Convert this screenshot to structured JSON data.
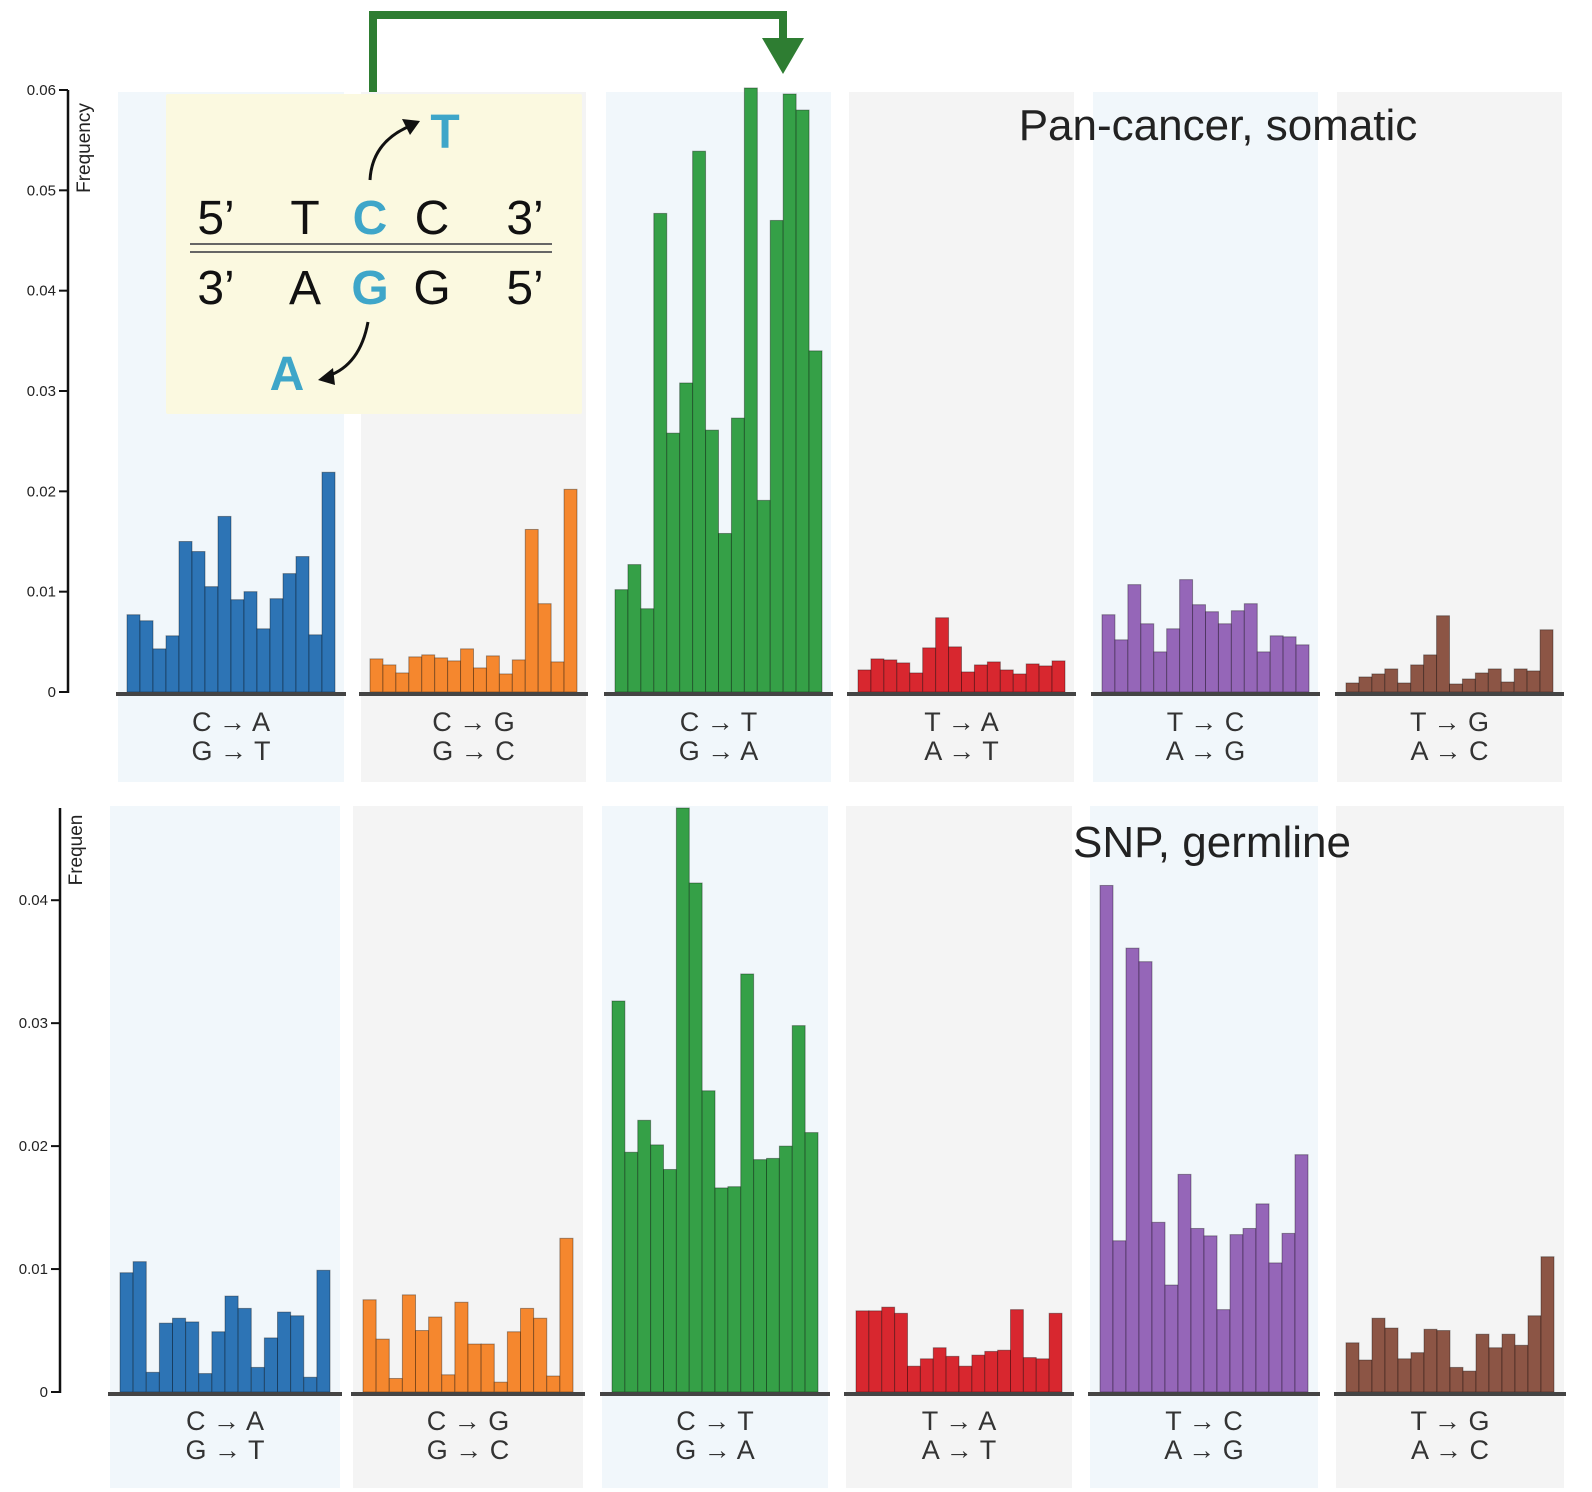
{
  "colors": {
    "C>A": "#2d74b5",
    "C>G": "#f5872e",
    "C>T": "#35a047",
    "T>A": "#d8272f",
    "T>C": "#9566b8",
    "T>G": "#8c5545",
    "panel_bg_light": "#f1f7fb",
    "panel_bg_gray": "#f4f4f4",
    "inset_bg": "#fbf9e0",
    "highlight_base": "#3ea6c9",
    "arrow": "#2e7d32"
  },
  "inset": {
    "top_strand": {
      "left": "5’",
      "b1": "T",
      "b2": "C",
      "b3": "C",
      "right": "3’"
    },
    "bottom_strand": {
      "left": "3’",
      "b1": "A",
      "b2": "G",
      "b3": "G",
      "right": "5’"
    },
    "top_mutant": "T",
    "bottom_mutant": "A"
  },
  "chart_data": [
    {
      "type": "bar",
      "title": "Pan-cancer, somatic",
      "ylabel": "Frequency",
      "ylim": [
        0,
        0.06
      ],
      "yticks": [
        0,
        0.01,
        0.02,
        0.03,
        0.04,
        0.05,
        0.06
      ],
      "ytick_labels": [
        "0",
        "0.01",
        "0.02",
        "0.03",
        "0.04",
        "0.05",
        "0.06"
      ],
      "grid": false,
      "groups": [
        {
          "key": "C>A",
          "label_top": "C → A",
          "label_bottom": "G → T",
          "values": [
            0.0077,
            0.0071,
            0.0043,
            0.0056,
            0.015,
            0.014,
            0.0105,
            0.0175,
            0.0092,
            0.01,
            0.0063,
            0.0093,
            0.0118,
            0.0135,
            0.0057,
            0.0219
          ]
        },
        {
          "key": "C>G",
          "label_top": "C → G",
          "label_bottom": "G → C",
          "values": [
            0.0033,
            0.0027,
            0.0019,
            0.0035,
            0.0037,
            0.0034,
            0.0031,
            0.0043,
            0.0024,
            0.0036,
            0.0018,
            0.0032,
            0.0162,
            0.0088,
            0.003,
            0.0202
          ]
        },
        {
          "key": "C>T",
          "label_top": "C → T",
          "label_bottom": "G → A",
          "values": [
            0.0102,
            0.0127,
            0.0083,
            0.0477,
            0.0258,
            0.0308,
            0.0539,
            0.0261,
            0.0158,
            0.0273,
            0.0602,
            0.0191,
            0.047,
            0.0596,
            0.058,
            0.034
          ]
        },
        {
          "key": "T>A",
          "label_top": "T → A",
          "label_bottom": "A → T",
          "values": [
            0.0022,
            0.0033,
            0.0032,
            0.0029,
            0.0019,
            0.0044,
            0.0074,
            0.0045,
            0.002,
            0.0027,
            0.003,
            0.0022,
            0.0018,
            0.0028,
            0.0026,
            0.0031
          ]
        },
        {
          "key": "T>C",
          "label_top": "T → C",
          "label_bottom": "A → G",
          "values": [
            0.0077,
            0.0052,
            0.0107,
            0.0068,
            0.004,
            0.0063,
            0.0112,
            0.0087,
            0.008,
            0.0068,
            0.0081,
            0.0088,
            0.004,
            0.0056,
            0.0055,
            0.0047
          ]
        },
        {
          "key": "T>G",
          "label_top": "T → G",
          "label_bottom": "A → C",
          "values": [
            0.0009,
            0.0015,
            0.0018,
            0.0023,
            0.0009,
            0.0027,
            0.0037,
            0.0076,
            0.0008,
            0.0013,
            0.0019,
            0.0023,
            0.001,
            0.0023,
            0.0021,
            0.0062
          ]
        }
      ]
    },
    {
      "type": "bar",
      "title": "SNP, germline",
      "ylabel": "Frequen",
      "ylim": [
        0,
        0.0475
      ],
      "yticks": [
        0,
        0.01,
        0.02,
        0.03,
        0.04
      ],
      "ytick_labels": [
        "0",
        "0.01",
        "0.02",
        "0.03",
        "0.04"
      ],
      "grid": false,
      "groups": [
        {
          "key": "C>A",
          "label_top": "C → A",
          "label_bottom": "G → T",
          "values": [
            0.0097,
            0.0106,
            0.0016,
            0.0056,
            0.006,
            0.0057,
            0.0015,
            0.0049,
            0.0078,
            0.0068,
            0.002,
            0.0044,
            0.0065,
            0.0062,
            0.0012,
            0.0099
          ]
        },
        {
          "key": "C>G",
          "label_top": "C → G",
          "label_bottom": "G → C",
          "values": [
            0.0075,
            0.0043,
            0.0011,
            0.0079,
            0.005,
            0.0061,
            0.0014,
            0.0073,
            0.0039,
            0.0039,
            0.0008,
            0.0049,
            0.0068,
            0.006,
            0.0013,
            0.0125
          ]
        },
        {
          "key": "C>T",
          "label_top": "C → T",
          "label_bottom": "G → A",
          "values": [
            0.0318,
            0.0195,
            0.0221,
            0.0201,
            0.0181,
            0.0475,
            0.0414,
            0.0245,
            0.0166,
            0.0167,
            0.034,
            0.0189,
            0.019,
            0.02,
            0.0298,
            0.0211
          ]
        },
        {
          "key": "T>A",
          "label_top": "T → A",
          "label_bottom": "A → T",
          "values": [
            0.0066,
            0.0066,
            0.0069,
            0.0064,
            0.0021,
            0.0027,
            0.0036,
            0.0029,
            0.0021,
            0.003,
            0.0033,
            0.0034,
            0.0067,
            0.0028,
            0.0027,
            0.0064
          ]
        },
        {
          "key": "T>C",
          "label_top": "T → C",
          "label_bottom": "A → G",
          "values": [
            0.0412,
            0.0123,
            0.0361,
            0.035,
            0.0138,
            0.0087,
            0.0177,
            0.0133,
            0.0127,
            0.0067,
            0.0128,
            0.0133,
            0.0153,
            0.0105,
            0.0129,
            0.0193
          ]
        },
        {
          "key": "T>G",
          "label_top": "T → G",
          "label_bottom": "A → C",
          "values": [
            0.004,
            0.0026,
            0.006,
            0.0052,
            0.0027,
            0.0032,
            0.0051,
            0.005,
            0.002,
            0.0017,
            0.0047,
            0.0036,
            0.0047,
            0.0038,
            0.0062,
            0.011
          ]
        }
      ]
    }
  ]
}
